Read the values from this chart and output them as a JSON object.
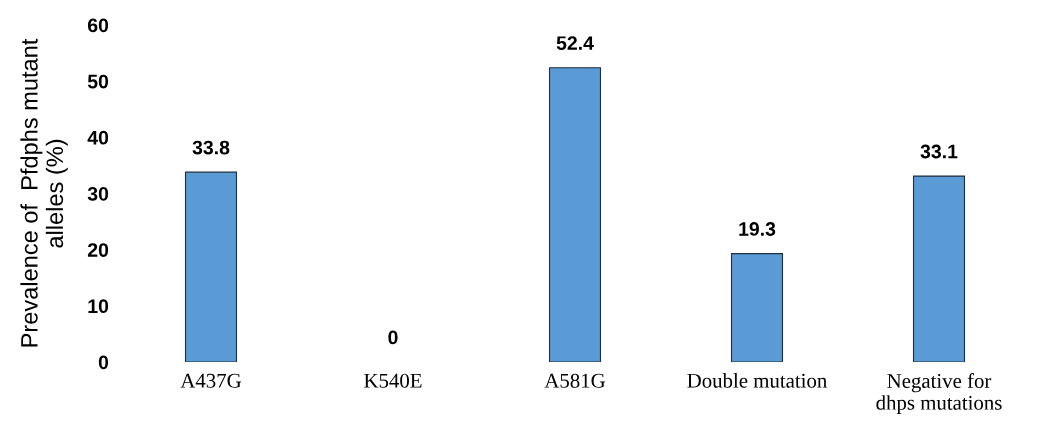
{
  "chart_data": {
    "type": "bar",
    "ylabel": "Prevalence of  Pfdphs mutant\nalleles (%)",
    "categories": [
      "A437G",
      "K540E",
      "A581G",
      "Double mutation",
      "Negative for\ndhps mutations"
    ],
    "values": [
      33.8,
      0,
      52.4,
      19.3,
      33.1
    ],
    "color": "#5b9bd5",
    "ylim": [
      0,
      60
    ],
    "yticks": [
      0,
      10,
      20,
      30,
      40,
      50,
      60
    ],
    "grid": false,
    "data_labels": true
  }
}
